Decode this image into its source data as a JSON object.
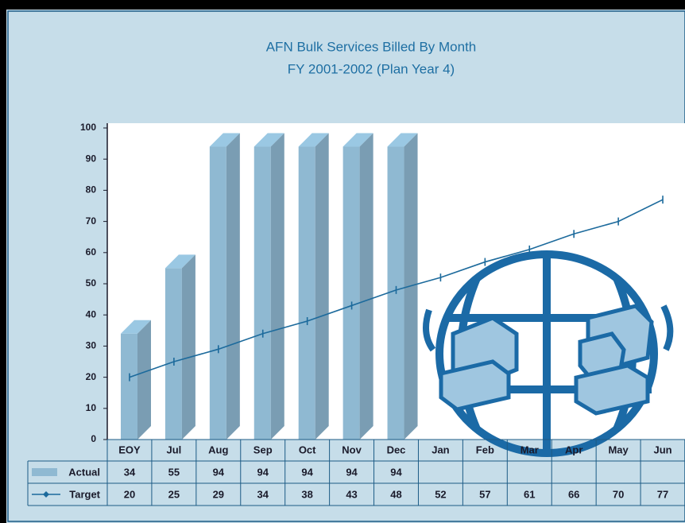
{
  "chart_data": {
    "type": "bar-line-table",
    "title": "AFN Bulk Services Billed By Month",
    "subtitle": "FY 2001-2002  (Plan Year 4)",
    "categories": [
      "EOY",
      "Jul",
      "Aug",
      "Sep",
      "Oct",
      "Nov",
      "Dec",
      "Jan",
      "Feb",
      "Mar",
      "Apr",
      "May",
      "Jun"
    ],
    "series": [
      {
        "name": "Actual",
        "type": "bar",
        "color": "#8fb9d2",
        "values": [
          34,
          55,
          94,
          94,
          94,
          94,
          94,
          null,
          null,
          null,
          null,
          null,
          null
        ]
      },
      {
        "name": "Target",
        "type": "line",
        "color": "#1c6a9c",
        "values": [
          20,
          25,
          29,
          34,
          38,
          43,
          48,
          52,
          57,
          61,
          66,
          70,
          77
        ]
      }
    ],
    "ylim": [
      0,
      100
    ],
    "yticks": [
      0,
      10,
      20,
      30,
      40,
      50,
      60,
      70,
      80,
      90,
      100
    ]
  }
}
